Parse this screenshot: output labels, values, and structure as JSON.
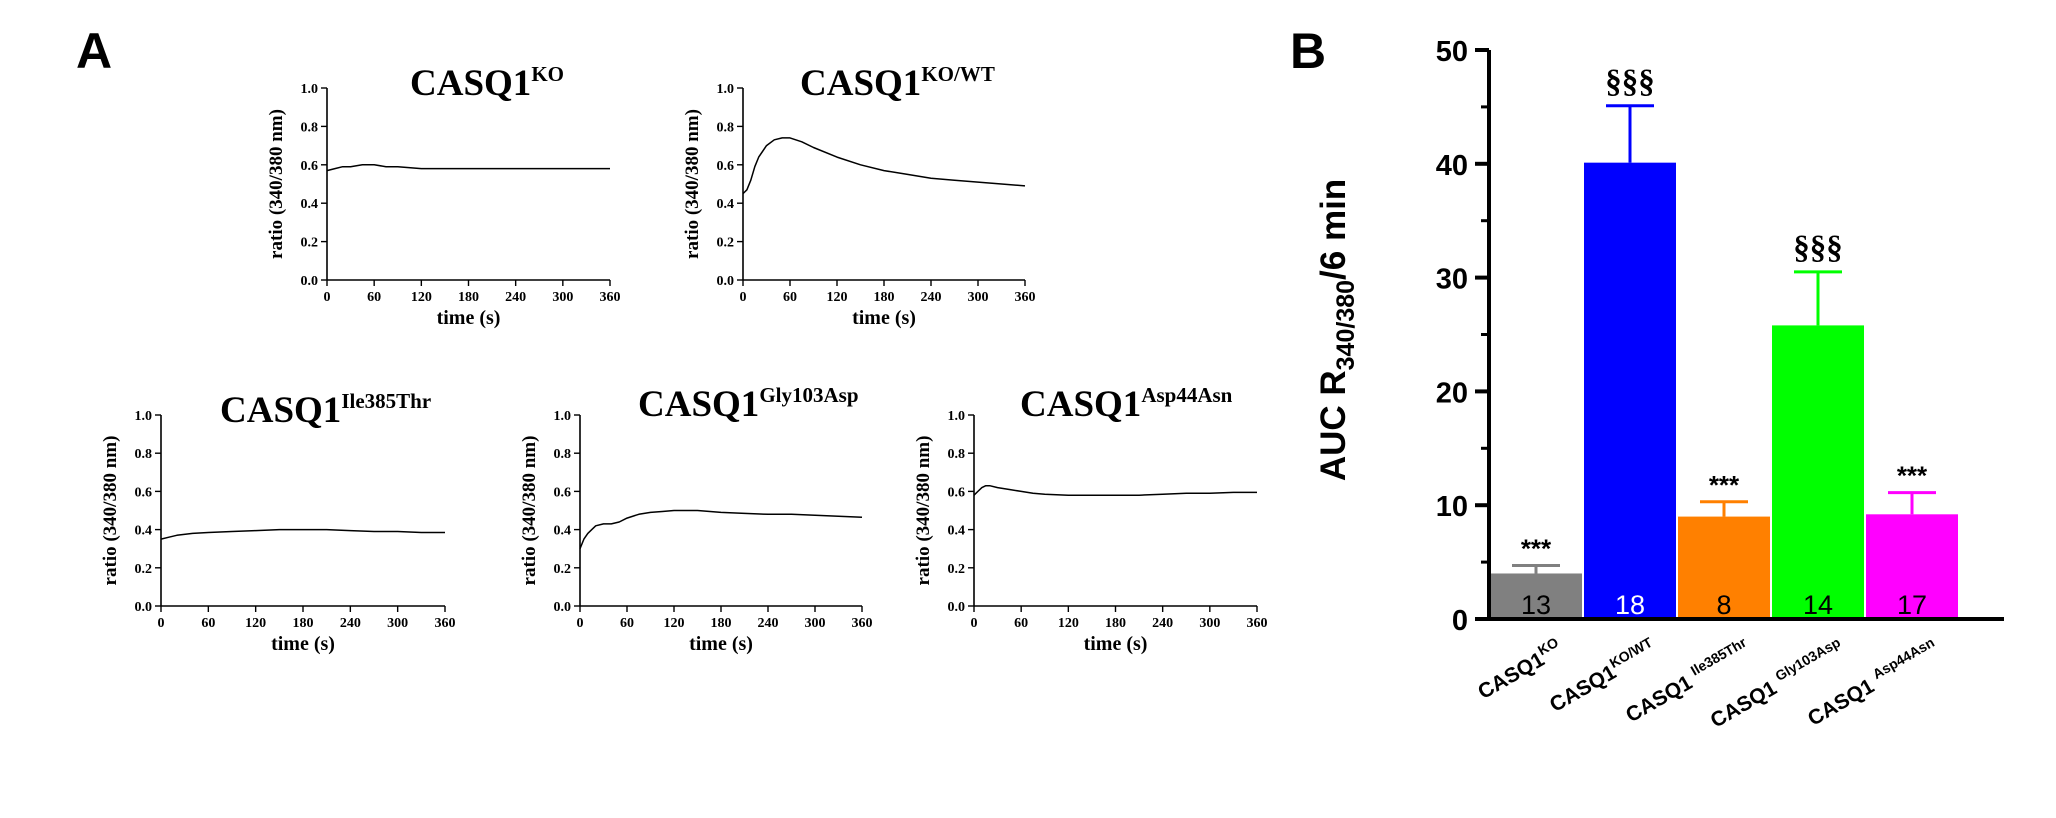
{
  "panels": {
    "a": "A",
    "b": "B"
  },
  "chart_data": [
    {
      "type": "line",
      "title": {
        "main": "CASQ1",
        "sup": "KO"
      },
      "xlabel": "time (s)",
      "ylabel": "ratio (340/380 nm)",
      "xlim": [
        0,
        360
      ],
      "ylim": [
        0,
        1.0
      ],
      "xticks": [
        "0",
        "60",
        "120",
        "180",
        "240",
        "300",
        "360"
      ],
      "yticks": [
        "0.0",
        "0.2",
        "0.4",
        "0.6",
        "0.8",
        "1.0"
      ],
      "x": [
        0,
        10,
        20,
        30,
        45,
        60,
        75,
        90,
        120,
        150,
        180,
        240,
        300,
        360
      ],
      "y": [
        0.57,
        0.58,
        0.59,
        0.59,
        0.6,
        0.6,
        0.59,
        0.59,
        0.58,
        0.58,
        0.58,
        0.58,
        0.58,
        0.58
      ]
    },
    {
      "type": "line",
      "title": {
        "main": "CASQ1",
        "sup": "KO/WT"
      },
      "xlabel": "time (s)",
      "ylabel": "ratio (340/380 nm)",
      "xlim": [
        0,
        360
      ],
      "ylim": [
        0,
        1.0
      ],
      "xticks": [
        "0",
        "60",
        "120",
        "180",
        "240",
        "300",
        "360"
      ],
      "yticks": [
        "0.0",
        "0.2",
        "0.4",
        "0.6",
        "0.8",
        "1.0"
      ],
      "x": [
        0,
        5,
        10,
        15,
        20,
        30,
        40,
        50,
        60,
        75,
        90,
        120,
        150,
        180,
        210,
        240,
        270,
        300,
        330,
        360
      ],
      "y": [
        0.45,
        0.47,
        0.52,
        0.59,
        0.64,
        0.7,
        0.73,
        0.74,
        0.74,
        0.72,
        0.69,
        0.64,
        0.6,
        0.57,
        0.55,
        0.53,
        0.52,
        0.51,
        0.5,
        0.49
      ]
    },
    {
      "type": "line",
      "title": {
        "main": "CASQ1",
        "sup": "Ile385Thr"
      },
      "xlabel": "time (s)",
      "ylabel": "ratio (340/380 nm)",
      "xlim": [
        0,
        360
      ],
      "ylim": [
        0,
        1.0
      ],
      "xticks": [
        "0",
        "60",
        "120",
        "180",
        "240",
        "300",
        "360"
      ],
      "yticks": [
        "0.0",
        "0.2",
        "0.4",
        "0.6",
        "0.8",
        "1.0"
      ],
      "x": [
        0,
        10,
        20,
        40,
        60,
        90,
        120,
        150,
        180,
        210,
        240,
        270,
        300,
        330,
        360
      ],
      "y": [
        0.35,
        0.36,
        0.37,
        0.38,
        0.385,
        0.39,
        0.395,
        0.4,
        0.4,
        0.4,
        0.395,
        0.39,
        0.39,
        0.385,
        0.385
      ]
    },
    {
      "type": "line",
      "title": {
        "main": "CASQ1",
        "sup": "Gly103Asp"
      },
      "xlabel": "time (s)",
      "ylabel": "ratio (340/380 nm)",
      "xlim": [
        0,
        360
      ],
      "ylim": [
        0,
        1.0
      ],
      "xticks": [
        "0",
        "60",
        "120",
        "180",
        "240",
        "300",
        "360"
      ],
      "yticks": [
        "0.0",
        "0.2",
        "0.4",
        "0.6",
        "0.8",
        "1.0"
      ],
      "x": [
        0,
        5,
        10,
        15,
        20,
        30,
        40,
        50,
        60,
        75,
        90,
        105,
        120,
        150,
        180,
        210,
        240,
        270,
        300,
        330,
        360
      ],
      "y": [
        0.3,
        0.35,
        0.38,
        0.4,
        0.42,
        0.43,
        0.43,
        0.44,
        0.46,
        0.48,
        0.49,
        0.495,
        0.5,
        0.5,
        0.49,
        0.485,
        0.48,
        0.48,
        0.475,
        0.47,
        0.465
      ]
    },
    {
      "type": "line",
      "title": {
        "main": "CASQ1",
        "sup": "Asp44Asn"
      },
      "xlabel": "time (s)",
      "ylabel": "ratio (340/380 nm)",
      "xlim": [
        0,
        360
      ],
      "ylim": [
        0,
        1.0
      ],
      "xticks": [
        "0",
        "60",
        "120",
        "180",
        "240",
        "300",
        "360"
      ],
      "yticks": [
        "0.0",
        "0.2",
        "0.4",
        "0.6",
        "0.8",
        "1.0"
      ],
      "x": [
        0,
        5,
        10,
        15,
        20,
        30,
        45,
        60,
        75,
        90,
        120,
        150,
        180,
        210,
        240,
        270,
        300,
        330,
        360
      ],
      "y": [
        0.58,
        0.6,
        0.62,
        0.63,
        0.63,
        0.62,
        0.61,
        0.6,
        0.59,
        0.585,
        0.58,
        0.58,
        0.58,
        0.58,
        0.585,
        0.59,
        0.59,
        0.595,
        0.595
      ]
    },
    {
      "type": "bar",
      "ylabel": {
        "main": "AUC R",
        "sub": "340/380",
        "tail": "/6 min"
      },
      "ylim": [
        0,
        50
      ],
      "yticks": [
        "0",
        "10",
        "20",
        "30",
        "40",
        "50"
      ],
      "categories": [
        {
          "main": "CASQ1",
          "sup": "KO"
        },
        {
          "main": "CASQ1",
          "sup": "KO/WT"
        },
        {
          "main": "CASQ1 ",
          "sup": "Ile385Thr"
        },
        {
          "main": "CASQ1 ",
          "sup": "Gly103Asp"
        },
        {
          "main": "CASQ1 ",
          "sup": "Asp44Asn"
        }
      ],
      "values": [
        4.0,
        40.1,
        9.0,
        25.8,
        9.2
      ],
      "errors": [
        0.7,
        5.0,
        1.3,
        4.7,
        1.9
      ],
      "n": [
        "13",
        "18",
        "8",
        "14",
        "17"
      ],
      "annotations": [
        "***",
        "§§§",
        "***",
        "§§§",
        "***"
      ],
      "colors": [
        "#808080",
        "#0000ff",
        "#ff8000",
        "#00ff00",
        "#ff00ff"
      ],
      "n_colors": [
        "#000000",
        "#ffffff",
        "#000000",
        "#000000",
        "#000000"
      ]
    }
  ]
}
